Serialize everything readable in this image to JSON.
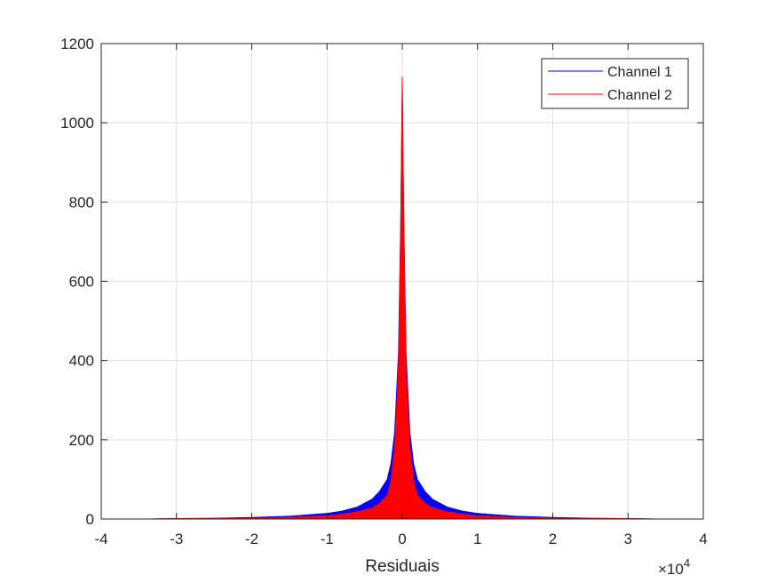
{
  "chart_data": {
    "type": "area",
    "title": "",
    "xlabel": "Residuais",
    "ylabel": "",
    "x_exponent_label": "×10",
    "x_exponent_power": "4",
    "xlim": [
      -4,
      4
    ],
    "ylim": [
      0,
      1200
    ],
    "xticks": [
      -4,
      -3,
      -2,
      -1,
      0,
      1,
      2,
      3,
      4
    ],
    "yticks": [
      0,
      200,
      400,
      600,
      800,
      1000,
      1200
    ],
    "xtick_labels": [
      "-4",
      "-3",
      "-2",
      "-1",
      "0",
      "1",
      "2",
      "3",
      "4"
    ],
    "ytick_labels": [
      "0",
      "200",
      "400",
      "600",
      "800",
      "1000",
      "1200"
    ],
    "grid": true,
    "legend_position": "top-right",
    "series": [
      {
        "name": "Channel 1",
        "color": "#0000ff",
        "x": [
          -3.4,
          -3.0,
          -2.5,
          -2.0,
          -1.5,
          -1.0,
          -0.8,
          -0.6,
          -0.4,
          -0.3,
          -0.2,
          -0.15,
          -0.1,
          -0.05,
          -0.02,
          0.0,
          0.02,
          0.05,
          0.1,
          0.15,
          0.2,
          0.3,
          0.4,
          0.6,
          0.8,
          1.0,
          1.5,
          2.0,
          2.5,
          3.0,
          3.4
        ],
        "values": [
          0,
          1,
          2,
          4,
          7,
          14,
          20,
          30,
          50,
          70,
          100,
          140,
          220,
          420,
          750,
          1080,
          750,
          420,
          220,
          140,
          100,
          70,
          50,
          30,
          20,
          14,
          7,
          4,
          2,
          1,
          0
        ]
      },
      {
        "name": "Channel 2",
        "color": "#ff0000",
        "x": [
          -3.3,
          -3.0,
          -2.5,
          -2.0,
          -1.5,
          -1.0,
          -0.8,
          -0.6,
          -0.4,
          -0.3,
          -0.2,
          -0.15,
          -0.1,
          -0.05,
          -0.02,
          0.0,
          0.02,
          0.05,
          0.1,
          0.15,
          0.2,
          0.3,
          0.4,
          0.6,
          0.8,
          1.0,
          1.5,
          2.0,
          2.5,
          3.0,
          3.3
        ],
        "values": [
          0,
          1,
          1,
          2,
          4,
          8,
          12,
          18,
          28,
          40,
          60,
          95,
          180,
          380,
          740,
          1115,
          740,
          380,
          180,
          95,
          60,
          40,
          28,
          18,
          12,
          8,
          4,
          2,
          1,
          1,
          0
        ]
      }
    ]
  }
}
